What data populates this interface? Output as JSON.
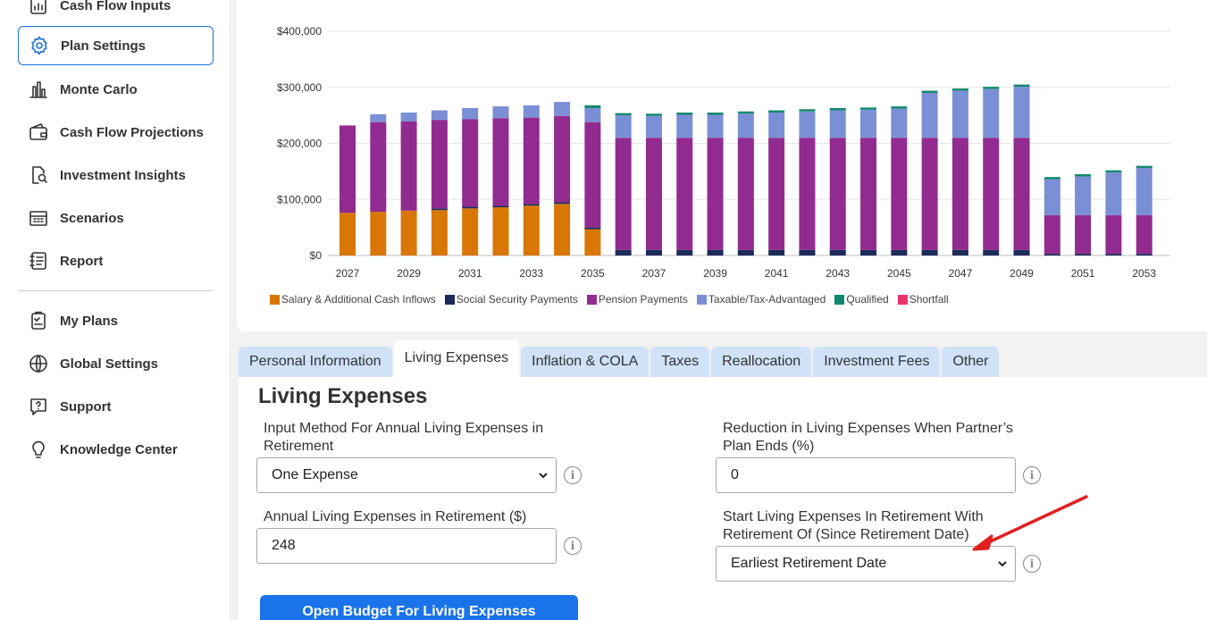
{
  "sidebar": {
    "items": [
      {
        "label": "Cash Flow Inputs",
        "icon": "chart-doc-icon",
        "active": false
      },
      {
        "label": "Plan Settings",
        "icon": "gear-icon",
        "active": true
      },
      {
        "label": "Monte Carlo",
        "icon": "bars-chart-icon",
        "active": false
      },
      {
        "label": "Cash Flow Projections",
        "icon": "wallet-icon",
        "active": false
      },
      {
        "label": "Investment Insights",
        "icon": "magnify-doc-icon",
        "active": false
      },
      {
        "label": "Scenarios",
        "icon": "calculator-icon",
        "active": false
      },
      {
        "label": "Report",
        "icon": "report-icon",
        "active": false
      }
    ],
    "secondary": [
      {
        "label": "My Plans",
        "icon": "clipboard-icon"
      },
      {
        "label": "Global Settings",
        "icon": "globe-icon"
      },
      {
        "label": "Support",
        "icon": "help-chat-icon"
      },
      {
        "label": "Knowledge Center",
        "icon": "lightbulb-icon"
      }
    ]
  },
  "chart_data": {
    "type": "bar",
    "stacked": true,
    "ylim": [
      0,
      400000
    ],
    "yticks": [
      "$0",
      "$100,000",
      "$200,000",
      "$300,000",
      "$400,000"
    ],
    "ytick_values": [
      0,
      100000,
      200000,
      300000,
      400000
    ],
    "xtick_labels": [
      "2027",
      "2029",
      "2031",
      "2033",
      "2035",
      "2037",
      "2039",
      "2041",
      "2043",
      "2045",
      "2047",
      "2049",
      "2051",
      "2053"
    ],
    "categories": [
      "2027",
      "2028",
      "2029",
      "2030",
      "2031",
      "2032",
      "2033",
      "2034",
      "2035",
      "2036",
      "2037",
      "2038",
      "2039",
      "2040",
      "2041",
      "2042",
      "2043",
      "2044",
      "2045",
      "2046",
      "2047",
      "2048",
      "2049",
      "2050",
      "2051",
      "2052",
      "2053"
    ],
    "series": [
      {
        "name": "Salary & Additional Cash Inflows",
        "color": "#d97706",
        "values": [
          76000,
          78000,
          80000,
          81000,
          84000,
          86000,
          89000,
          92000,
          47000,
          0,
          0,
          0,
          0,
          0,
          0,
          0,
          0,
          0,
          0,
          0,
          0,
          0,
          0,
          0,
          0,
          0,
          0
        ]
      },
      {
        "name": "Social Security Payments",
        "color": "#1e2a5a",
        "values": [
          0,
          0,
          0,
          3000,
          3000,
          3000,
          3000,
          3000,
          3000,
          10000,
          10000,
          10000,
          10000,
          10000,
          10000,
          10000,
          10000,
          10000,
          10000,
          10000,
          10000,
          10000,
          10000,
          3000,
          3000,
          3000,
          3000
        ]
      },
      {
        "name": "Pension Payments",
        "color": "#922b8f",
        "values": [
          156000,
          160000,
          159000,
          158000,
          156000,
          156000,
          154000,
          154000,
          188000,
          200000,
          200000,
          200000,
          200000,
          200000,
          200000,
          200000,
          200000,
          200000,
          200000,
          200000,
          200000,
          200000,
          200000,
          69000,
          69000,
          69000,
          69000
        ]
      },
      {
        "name": "Taxable/Tax-Advantaged",
        "color": "#7b8fd6",
        "values": [
          0,
          14000,
          16000,
          17000,
          20000,
          21000,
          22000,
          25000,
          25000,
          40000,
          39000,
          41000,
          41000,
          43000,
          45000,
          47000,
          49000,
          50000,
          52000,
          80000,
          84000,
          87000,
          91000,
          64000,
          69000,
          76000,
          84000
        ]
      },
      {
        "name": "Qualified",
        "color": "#138a6e",
        "values": [
          0,
          0,
          0,
          0,
          0,
          0,
          0,
          0,
          5000,
          4000,
          4000,
          4000,
          4000,
          4000,
          4000,
          4000,
          4000,
          4000,
          4000,
          4000,
          4000,
          4000,
          4000,
          4000,
          4000,
          4000,
          4000
        ]
      },
      {
        "name": "Shortfall",
        "color": "#e8336d",
        "values": [
          0,
          0,
          0,
          0,
          0,
          0,
          0,
          0,
          0,
          0,
          0,
          0,
          0,
          0,
          0,
          0,
          0,
          0,
          0,
          0,
          0,
          0,
          0,
          0,
          0,
          0,
          0
        ]
      }
    ]
  },
  "tabs": [
    {
      "label": "Personal Information",
      "active": false
    },
    {
      "label": "Living Expenses",
      "active": true
    },
    {
      "label": "Inflation & COLA",
      "active": false
    },
    {
      "label": "Taxes",
      "active": false
    },
    {
      "label": "Reallocation",
      "active": false
    },
    {
      "label": "Investment Fees",
      "active": false
    },
    {
      "label": "Other",
      "active": false
    }
  ],
  "form": {
    "title": "Living Expenses",
    "input_method_label": "Input Method For Annual Living Expenses in Retirement",
    "input_method_value": "One Expense",
    "annual_expenses_label": "Annual Living Expenses in Retirement ($)",
    "annual_expenses_value": "248",
    "reduction_label": "Reduction in Living Expenses When Partner’s Plan Ends (%)",
    "reduction_value": "0",
    "start_label": "Start Living Expenses In Retirement With Retirement Of (Since Retirement Date)",
    "start_value": "Earliest Retirement Date",
    "budget_button": "Open Budget For Living Expenses",
    "info_glyph": "i"
  },
  "colors": {
    "accent": "#1a73e8",
    "arrow": "#e02020",
    "tab_inactive": "#cfe2f7"
  }
}
